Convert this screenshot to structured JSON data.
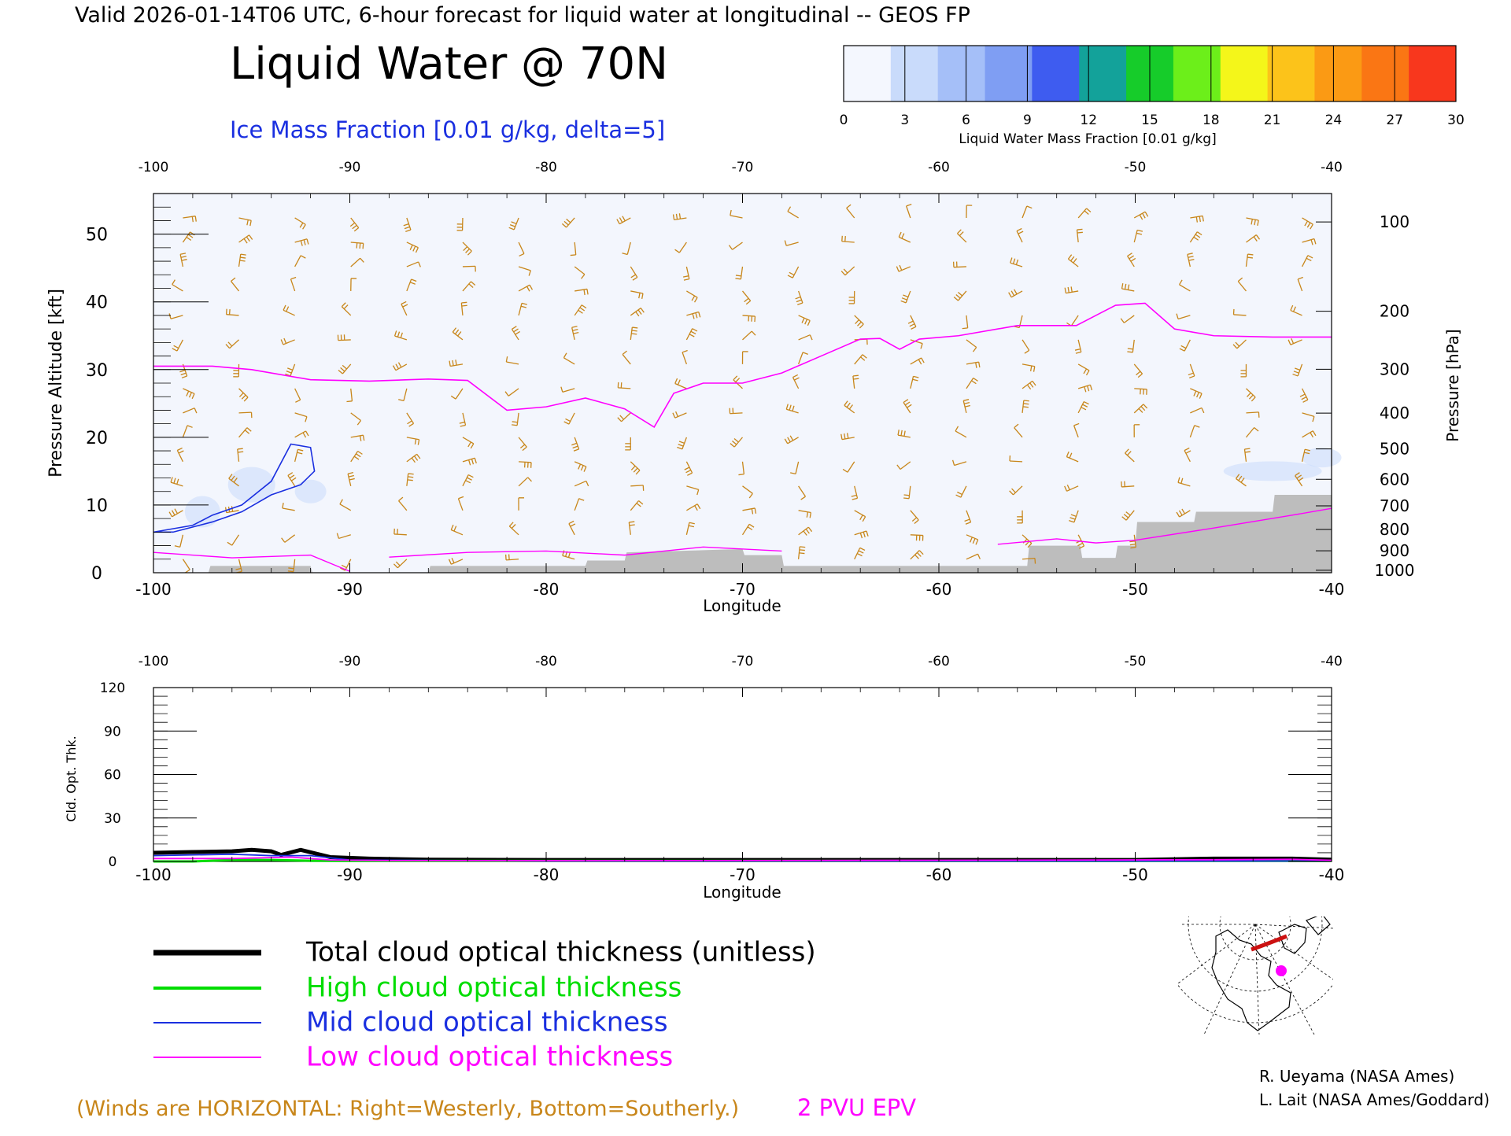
{
  "header": {
    "valid_line": "Valid 2026-01-14T06 UTC, 6-hour forecast for liquid water at longitudinal -- GEOS FP",
    "title": "Liquid Water @ 70N",
    "ice_label": "Ice Mass Fraction [0.01 g/kg, delta=5]"
  },
  "colorbar": {
    "ticks": [
      "0",
      "3",
      "6",
      "9",
      "12",
      "15",
      "18",
      "21",
      "24",
      "27",
      "30"
    ],
    "colors": [
      "#f4f7fe",
      "#c9dbfb",
      "#a5bff8",
      "#7f9ef3",
      "#3e5cf0",
      "#13a29a",
      "#16cc2a",
      "#6cef1a",
      "#f4f61a",
      "#fcc31a",
      "#fb9a14",
      "#fa7614",
      "#f8371d"
    ],
    "label": "Liquid Water Mass Fraction [0.01 g/kg]"
  },
  "colors": {
    "wind": "#c8861a",
    "epv": "#ff00ff",
    "ice": "#1a2fe0",
    "terrain": "#bdbdbd",
    "total": "#000000",
    "high": "#00dd00",
    "mid": "#1a2fe0",
    "low": "#ff00ff"
  },
  "top_panel": {
    "x_top_ticks": [
      "-100",
      "-90",
      "-80",
      "-70",
      "-60",
      "-50",
      "-40"
    ],
    "x_bottom_ticks": [
      "-100",
      "-90",
      "-80",
      "-70",
      "-60",
      "-50",
      "-40"
    ],
    "xlabel": "Longitude",
    "ylabel_left": "Pressure Altitude [kft]",
    "left_ticks": [
      "0",
      "10",
      "20",
      "30",
      "40",
      "50"
    ],
    "ylabel_right": "Pressure [hPa]",
    "right_ticks": [
      "100",
      "200",
      "300",
      "400",
      "500",
      "600",
      "700",
      "800",
      "900",
      "1000"
    ]
  },
  "bottom_panel": {
    "x_top_ticks": [
      "-100",
      "-90",
      "-80",
      "-70",
      "-60",
      "-50",
      "-40"
    ],
    "x_bottom_ticks": [
      "-100",
      "-90",
      "-80",
      "-70",
      "-60",
      "-50",
      "-40"
    ],
    "xlabel": "Longitude",
    "ylabel": "Cld. Opt. Thk.",
    "y_ticks": [
      "0",
      "30",
      "60",
      "90",
      "120"
    ]
  },
  "legend": {
    "total": "Total cloud optical thickness (unitless)",
    "high": "High cloud optical thickness",
    "mid": "Mid cloud optical thickness",
    "low": "Low cloud optical thickness"
  },
  "footer": {
    "winds_note": "(Winds are HORIZONTAL: Right=Westerly, Bottom=Southerly.)",
    "epv_label": "2 PVU EPV",
    "credit1": "R. Ueyama (NASA Ames)",
    "credit2": "L. Lait (NASA Ames/Goddard)"
  },
  "chart_data": [
    {
      "type": "area",
      "title": "Liquid Water @ 70N",
      "xlabel": "Longitude",
      "ylabel": "Pressure Altitude [kft]",
      "xlim": [
        -100,
        -40
      ],
      "ylim": [
        0,
        56
      ],
      "series": [
        {
          "name": "2 PVU EPV",
          "x": [
            -100,
            -97,
            -95,
            -92,
            -89,
            -86,
            -84,
            -82,
            -80,
            -78,
            -76,
            -74.5,
            -73.5,
            -72,
            -70,
            -68,
            -66,
            -64,
            -63,
            -62,
            -61,
            -59,
            -56,
            -54,
            -53,
            -51,
            -49.5,
            -48,
            -46,
            -43,
            -40
          ],
          "y": [
            30.5,
            30.5,
            30,
            28.5,
            28.3,
            28.6,
            28.4,
            24,
            24.5,
            25.8,
            24.2,
            21.5,
            26.5,
            28,
            28,
            29.5,
            32,
            34.5,
            34.6,
            33,
            34.5,
            35,
            36.5,
            36.5,
            36.5,
            39.5,
            39.8,
            36,
            35,
            34.8,
            34.8
          ]
        },
        {
          "name": "Ice Mass Fraction",
          "x": [
            -100,
            -98,
            -97,
            -95.5,
            -94,
            -93,
            -92,
            -91.8,
            -92.5,
            -94,
            -95.5,
            -97,
            -99
          ],
          "y": [
            6,
            7,
            8.5,
            10,
            13.5,
            19,
            18.5,
            15,
            13,
            11.5,
            9,
            7.5,
            6
          ]
        },
        {
          "name": "Terrain",
          "x": [
            -100,
            -97.2,
            -97.1,
            -92,
            -91.9,
            -86,
            -85.9,
            -78,
            -77.9,
            -76,
            -75.9,
            -70,
            -69.9,
            -68,
            -67.9,
            -55.5,
            -55.4,
            -52.8,
            -52.7,
            -51,
            -50.9,
            -50,
            -49.9,
            -47,
            -46.9,
            -43,
            -42.9,
            -40
          ],
          "y": [
            0,
            0,
            1,
            1,
            0,
            0,
            1,
            1,
            1.8,
            1.8,
            3,
            3.5,
            2.6,
            2.6,
            1,
            1,
            4,
            4,
            2.2,
            2.2,
            4,
            4,
            7.5,
            7.5,
            9,
            9,
            11.5,
            11.5
          ]
        }
      ]
    },
    {
      "type": "line",
      "xlabel": "Longitude",
      "ylabel": "Cld. Opt. Thk.",
      "xlim": [
        -100,
        -40
      ],
      "ylim": [
        0,
        120
      ],
      "series": [
        {
          "name": "Total cloud optical thickness (unitless)",
          "x": [
            -100,
            -98,
            -96,
            -95,
            -94,
            -93.5,
            -92.5,
            -91,
            -89,
            -86,
            -80,
            -70,
            -60,
            -50,
            -46,
            -42,
            -40
          ],
          "y": [
            6,
            6.5,
            7,
            8,
            7,
            4.5,
            8,
            3,
            2,
            1.2,
            1,
            1,
            1,
            1,
            2,
            2,
            1.2
          ]
        },
        {
          "name": "High cloud optical thickness",
          "x": [
            -100,
            -98,
            -96,
            -94,
            -92,
            -90,
            -80,
            -70,
            -60,
            -50,
            -40
          ],
          "y": [
            0,
            0,
            1,
            1,
            0.5,
            0.4,
            0.4,
            0.4,
            0.4,
            0.4,
            0.4
          ]
        },
        {
          "name": "Mid cloud optical thickness",
          "x": [
            -100,
            -96,
            -94,
            -92,
            -90,
            -80,
            -60,
            -40
          ],
          "y": [
            4,
            5,
            4,
            4,
            1,
            0.3,
            0.3,
            0.3
          ]
        },
        {
          "name": "Low cloud optical thickness",
          "x": [
            -100,
            -96,
            -93,
            -91,
            -88,
            -80,
            -60,
            -46,
            -42,
            -40
          ],
          "y": [
            2,
            2,
            3,
            1,
            0.6,
            0.5,
            0.8,
            1.2,
            1.5,
            0.8
          ]
        }
      ]
    }
  ]
}
